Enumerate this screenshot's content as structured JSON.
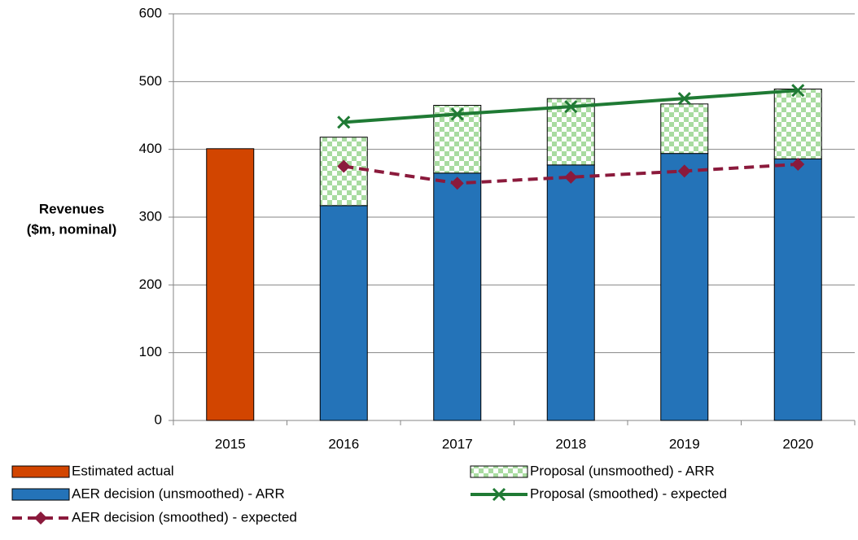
{
  "chart_data": {
    "type": "bar",
    "ylabel": [
      "Revenues",
      "($m, nominal)"
    ],
    "categories": [
      "2015",
      "2016",
      "2017",
      "2018",
      "2019",
      "2020"
    ],
    "ylim": [
      0,
      600
    ],
    "yticks": [
      0,
      100,
      200,
      300,
      400,
      500,
      600
    ],
    "grid": true,
    "series": [
      {
        "name": "Estimated actual",
        "type": "bar",
        "color": "#d24500",
        "values": [
          401,
          null,
          null,
          null,
          null,
          null
        ]
      },
      {
        "name": "AER decision (unsmoothed) - ARR",
        "type": "bar",
        "color": "#2473b8",
        "values": [
          null,
          317,
          365,
          377,
          394,
          386
        ]
      },
      {
        "name": "Proposal (unsmoothed) - ARR",
        "type": "bar",
        "color": "#a8dba0",
        "pattern": "checker",
        "values": [
          null,
          101,
          100,
          98,
          73,
          103
        ]
      },
      {
        "name": "Proposal (smoothed) - expected",
        "type": "line",
        "color": "#1f7a34",
        "marker": "x",
        "values": [
          null,
          440,
          452,
          463,
          475,
          487
        ]
      },
      {
        "name": "AER decision (smoothed) - expected",
        "type": "line",
        "color": "#8b1a3c",
        "marker": "diamond",
        "dash": true,
        "values": [
          null,
          375,
          350,
          359,
          368,
          378
        ]
      }
    ]
  }
}
